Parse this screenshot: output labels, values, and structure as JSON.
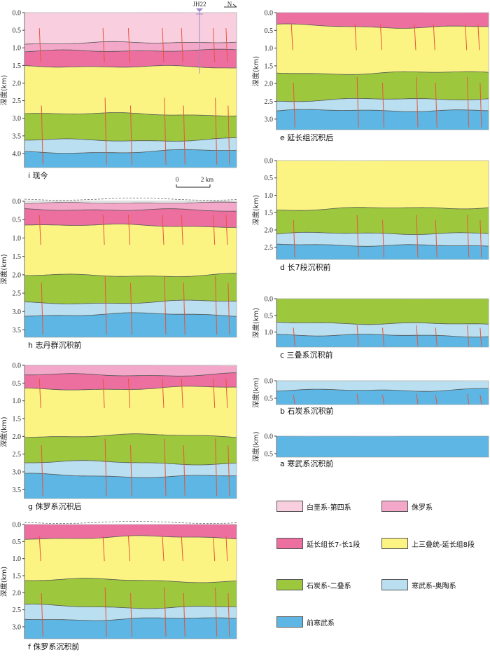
{
  "colors": {
    "cretaceous_quaternary": "#f9cfe0",
    "jurassic": "#f4a8c9",
    "yanchang_7_1": "#ec6f9f",
    "upper_triassic_8": "#fbf482",
    "carboniferous_permian": "#9dc83e",
    "cambrian_ordovician": "#b9dff0",
    "precambrian": "#5db6e3",
    "fault": "#e8553b",
    "boundary": "#555555"
  },
  "legend": [
    {
      "label": "白垩系-第四系",
      "color": "#f9cfe0"
    },
    {
      "label": "侏罗系",
      "color": "#f4a8c9"
    },
    {
      "label": "延长组长7-长1段",
      "color": "#ec6f9f"
    },
    {
      "label": "上三叠统-延长组8段",
      "color": "#fbf482"
    },
    {
      "label": "石炭系-二叠系",
      "color": "#9dc83e"
    },
    {
      "label": "寒武系-奥陶系",
      "color": "#b9dff0"
    },
    {
      "label": "前寒武系",
      "color": "#5db6e3"
    }
  ],
  "y_axis_label": "深度(km)",
  "well_label": "JH22",
  "north_label": "N",
  "scale_bar": {
    "start": "0",
    "end": "2 km"
  },
  "panels": [
    {
      "id": "i",
      "label": "i  现今",
      "max_depth": 4.4,
      "ticks": [
        "0.0",
        "0.5",
        "1.0",
        "1.5",
        "2.0",
        "2.5",
        "3.0",
        "3.5",
        "4.0"
      ],
      "layers": [
        {
          "top": 0.0,
          "color": "cretaceous_quaternary"
        },
        {
          "top": 0.85,
          "color": "jurassic"
        },
        {
          "top": 1.1,
          "color": "yanchang_7_1"
        },
        {
          "top": 1.55,
          "color": "upper_triassic_8"
        },
        {
          "top": 2.87,
          "color": "carboniferous_permian"
        },
        {
          "top": 3.6,
          "color": "cambrian_ordovician"
        },
        {
          "top": 3.95,
          "color": "precambrian"
        }
      ]
    },
    {
      "id": "h",
      "label": "h  志丹群沉积前",
      "max_depth": 3.7,
      "ticks": [
        "0.0",
        "0.5",
        "1.0",
        "1.5",
        "2.0",
        "2.5",
        "3.0",
        "3.5"
      ],
      "layers": [
        {
          "top": 0.05,
          "color": "jurassic"
        },
        {
          "top": 0.25,
          "color": "yanchang_7_1"
        },
        {
          "top": 0.65,
          "color": "upper_triassic_8"
        },
        {
          "top": 2.0,
          "color": "carboniferous_permian"
        },
        {
          "top": 2.75,
          "color": "cambrian_ordovician"
        },
        {
          "top": 3.1,
          "color": "precambrian"
        }
      ]
    },
    {
      "id": "g",
      "label": "g  侏罗系沉积后",
      "max_depth": 3.75,
      "ticks": [
        "0.0",
        "0.5",
        "1.0",
        "1.5",
        "2.0",
        "2.5",
        "3.0",
        "3.5"
      ],
      "layers": [
        {
          "top": 0.0,
          "color": "jurassic"
        },
        {
          "top": 0.25,
          "color": "yanchang_7_1"
        },
        {
          "top": 0.65,
          "color": "upper_triassic_8"
        },
        {
          "top": 2.0,
          "color": "carboniferous_permian"
        },
        {
          "top": 2.75,
          "color": "cambrian_ordovician"
        },
        {
          "top": 3.1,
          "color": "precambrian"
        }
      ]
    },
    {
      "id": "f",
      "label": "f  侏罗系沉积前",
      "max_depth": 3.35,
      "ticks": [
        "0.0",
        "0.5",
        "1.0",
        "1.5",
        "2.0",
        "2.5",
        "3.0"
      ],
      "layers": [
        {
          "top": 0.0,
          "color": "yanchang_7_1"
        },
        {
          "top": 0.4,
          "color": "upper_triassic_8"
        },
        {
          "top": 1.65,
          "color": "carboniferous_permian"
        },
        {
          "top": 2.4,
          "color": "cambrian_ordovician"
        },
        {
          "top": 2.75,
          "color": "precambrian"
        }
      ]
    },
    {
      "id": "e",
      "label": "e  延长组沉积后",
      "max_depth": 3.3,
      "ticks": [
        "0.0",
        "0.5",
        "1.0",
        "1.5",
        "2.0",
        "2.5",
        "3.0"
      ],
      "layers": [
        {
          "top": 0.0,
          "color": "yanchang_7_1"
        },
        {
          "top": 0.38,
          "color": "upper_triassic_8"
        },
        {
          "top": 1.68,
          "color": "carboniferous_permian"
        },
        {
          "top": 2.45,
          "color": "cambrian_ordovician"
        },
        {
          "top": 2.78,
          "color": "precambrian"
        }
      ]
    },
    {
      "id": "d",
      "label": "d  长7段沉积前",
      "max_depth": 2.85,
      "ticks": [
        "0.0",
        "0.5",
        "1.0",
        "1.5",
        "2.0",
        "2.5"
      ],
      "layers": [
        {
          "top": 0.0,
          "color": "upper_triassic_8"
        },
        {
          "top": 1.38,
          "color": "carboniferous_permian"
        },
        {
          "top": 2.12,
          "color": "cambrian_ordovician"
        },
        {
          "top": 2.45,
          "color": "precambrian"
        }
      ]
    },
    {
      "id": "c",
      "label": "c  三叠系沉积前",
      "max_depth": 1.45,
      "ticks": [
        "0.0",
        "0.5",
        "1.0"
      ],
      "layers": [
        {
          "top": 0.0,
          "color": "carboniferous_permian"
        },
        {
          "top": 0.75,
          "color": "cambrian_ordovician"
        },
        {
          "top": 1.08,
          "color": "precambrian"
        }
      ]
    },
    {
      "id": "b",
      "label": "b  石炭系沉积前",
      "max_depth": 0.68,
      "ticks": [
        "0.0",
        "0.5"
      ],
      "layers": [
        {
          "top": 0.0,
          "color": "cambrian_ordovician"
        },
        {
          "top": 0.25,
          "color": "precambrian"
        }
      ]
    },
    {
      "id": "a",
      "label": "a  寒武系沉积前",
      "max_depth": 0.6,
      "ticks": [
        "0.0",
        "0.5"
      ],
      "layers": [
        {
          "top": 0.0,
          "color": "precambrian"
        }
      ]
    }
  ]
}
